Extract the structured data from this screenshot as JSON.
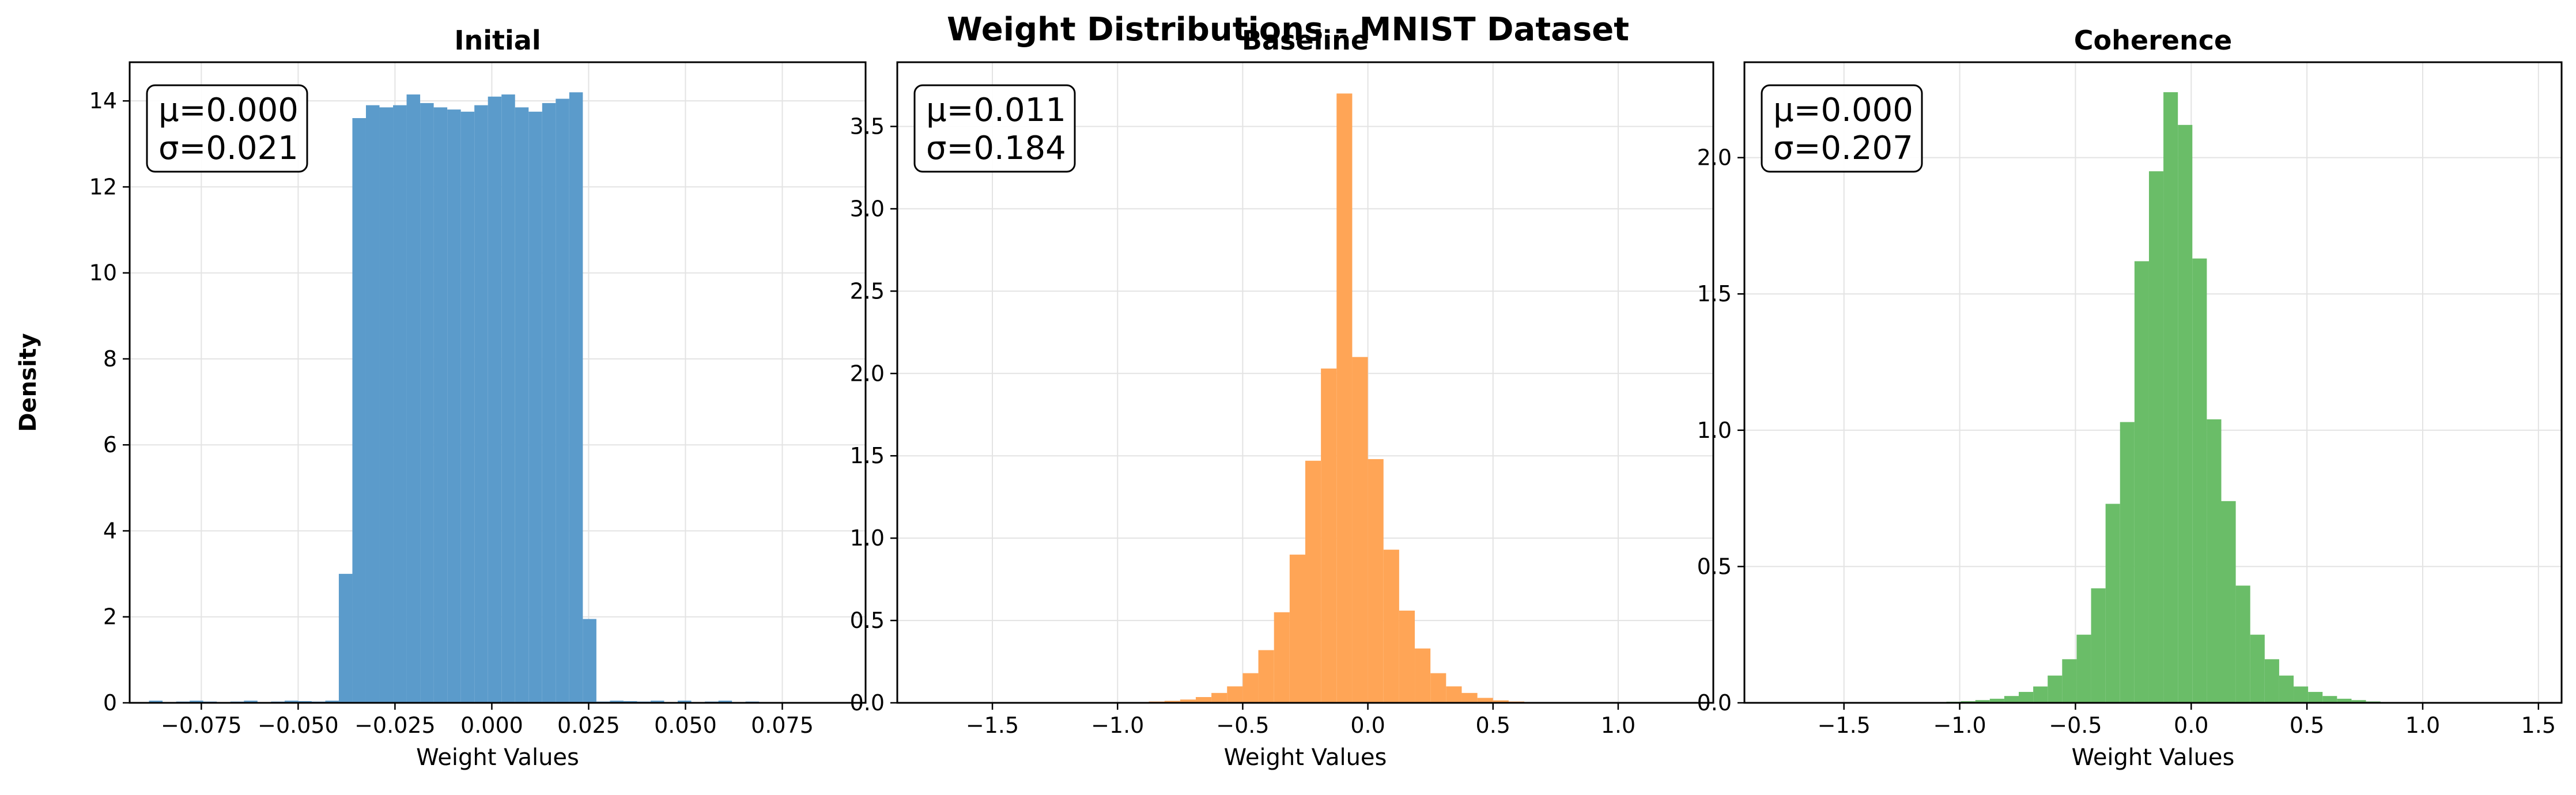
{
  "figure_title": "Weight Distributions - MNIST Dataset",
  "chart_data": [
    {
      "type": "bar",
      "title": "Initial",
      "xlabel": "Weight Values",
      "ylabel": "Density",
      "xlim": [
        -0.0935,
        0.0965
      ],
      "ylim": [
        0,
        14.9
      ],
      "xticks": [
        -0.075,
        -0.05,
        -0.025,
        0.0,
        0.025,
        0.05,
        0.075
      ],
      "xtick_labels": [
        "−0.075",
        "−0.050",
        "−0.025",
        "0.000",
        "0.025",
        "0.050",
        "0.075"
      ],
      "yticks": [
        0,
        2,
        4,
        6,
        8,
        10,
        12,
        14
      ],
      "ytick_labels": [
        "0",
        "2",
        "4",
        "6",
        "8",
        "10",
        "12",
        "14"
      ],
      "grid": true,
      "color": "#5b9bcb",
      "bin_start": -0.0885,
      "bin_width": 0.0035,
      "values": [
        0.05,
        0,
        0.03,
        0.05,
        0.03,
        0,
        0.03,
        0.05,
        0,
        0.03,
        0.05,
        0.04,
        0.03,
        0.05,
        3.0,
        13.6,
        13.9,
        13.85,
        13.9,
        14.15,
        13.95,
        13.85,
        13.8,
        13.75,
        13.9,
        14.1,
        14.15,
        13.85,
        13.75,
        13.95,
        14.05,
        14.2,
        1.95,
        0.03,
        0.05,
        0.04,
        0.03,
        0.05,
        0.02,
        0.05,
        0,
        0.03,
        0.05,
        0,
        0.03,
        0.02
      ],
      "stats": {
        "mean": "μ=0.000",
        "std": "σ=0.021"
      }
    },
    {
      "type": "bar",
      "title": "Baseline",
      "xlabel": "Weight Values",
      "ylabel": "",
      "xlim": [
        -1.88,
        1.38
      ],
      "ylim": [
        0,
        3.89
      ],
      "xticks": [
        -1.5,
        -1.0,
        -0.5,
        0.0,
        0.5,
        1.0
      ],
      "xtick_labels": [
        "−1.5",
        "−1.0",
        "−0.5",
        "0.0",
        "0.5",
        "1.0"
      ],
      "yticks": [
        0,
        0.5,
        1.0,
        1.5,
        2.0,
        2.5,
        3.0,
        3.5
      ],
      "ytick_labels": [
        "0.0",
        "0.5",
        "1.0",
        "1.5",
        "2.0",
        "2.5",
        "3.0",
        "3.5"
      ],
      "grid": true,
      "color": "#ffa556",
      "bin_start": -1.0,
      "bin_width": 0.0625,
      "values": [
        0.003,
        0.005,
        0.008,
        0.012,
        0.02,
        0.035,
        0.06,
        0.1,
        0.18,
        0.32,
        0.55,
        0.9,
        1.47,
        2.03,
        3.7,
        2.1,
        1.48,
        0.93,
        0.56,
        0.33,
        0.18,
        0.1,
        0.06,
        0.03,
        0.015,
        0.008,
        0.004,
        0.002
      ],
      "stats": {
        "mean": "μ=0.011",
        "std": "σ=0.184"
      }
    },
    {
      "type": "bar",
      "title": "Coherence",
      "xlabel": "Weight Values",
      "ylabel": "",
      "xlim": [
        -1.93,
        1.6
      ],
      "ylim": [
        0,
        2.35
      ],
      "xticks": [
        -1.5,
        -1.0,
        -0.5,
        0.0,
        0.5,
        1.0,
        1.5
      ],
      "xtick_labels": [
        "−1.5",
        "−1.0",
        "−0.5",
        "0.0",
        "0.5",
        "1.0",
        "1.5"
      ],
      "yticks": [
        0,
        0.5,
        1.0,
        1.5,
        2.0
      ],
      "ytick_labels": [
        "0.0",
        "0.5",
        "1.0",
        "1.5",
        "2.0"
      ],
      "grid": true,
      "color": "#6abd68",
      "bin_start": -1.12,
      "bin_width": 0.0625,
      "values": [
        0.002,
        0.004,
        0.006,
        0.01,
        0.015,
        0.025,
        0.04,
        0.06,
        0.1,
        0.16,
        0.25,
        0.42,
        0.73,
        1.03,
        1.62,
        1.95,
        2.24,
        2.12,
        1.63,
        1.04,
        0.74,
        0.43,
        0.25,
        0.16,
        0.1,
        0.06,
        0.04,
        0.025,
        0.015,
        0.01,
        0.005,
        0.002
      ],
      "stats": {
        "mean": "μ=0.000",
        "std": "σ=0.207"
      }
    }
  ]
}
